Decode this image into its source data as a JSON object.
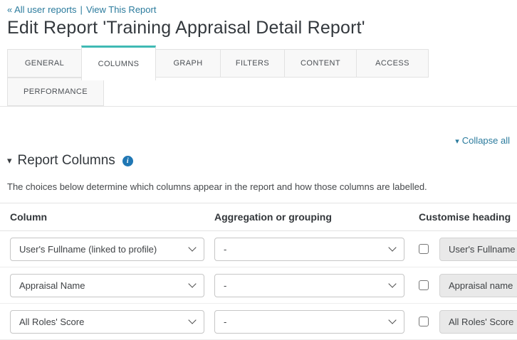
{
  "breadcrumb": {
    "back_link": "« All user reports",
    "separator": "|",
    "view_link": "View This Report"
  },
  "page_title": "Edit Report 'Training Appraisal Detail Report'",
  "tabs": {
    "active": "COLUMNS",
    "row1": [
      "GENERAL",
      "COLUMNS",
      "GRAPH",
      "FILTERS",
      "CONTENT",
      "ACCESS"
    ],
    "row2": [
      "PERFORMANCE"
    ]
  },
  "collapse_all_label": "Collapse all",
  "section": {
    "title": "Report Columns",
    "description": "The choices below determine which columns appear in the report and how those columns are labelled."
  },
  "table": {
    "headers": [
      "Column",
      "Aggregation or grouping",
      "Customise heading"
    ],
    "rows": [
      {
        "column": "User's Fullname (linked to profile)",
        "aggregation": "-",
        "checkbox_checked": false,
        "heading": "User's Fullname"
      },
      {
        "column": "Appraisal Name",
        "aggregation": "-",
        "checkbox_checked": false,
        "heading": "Appraisal name"
      },
      {
        "column": "All Roles' Score",
        "aggregation": "-",
        "checkbox_checked": false,
        "heading": "All Roles' Score"
      }
    ]
  },
  "icons": {
    "caret_down": "▾",
    "info": "i"
  },
  "colors": {
    "accent_teal": "#3fbab4",
    "link": "#2b7b9d",
    "info_blue": "#2077b4",
    "disabled_input_bg": "#e9e9e9"
  }
}
